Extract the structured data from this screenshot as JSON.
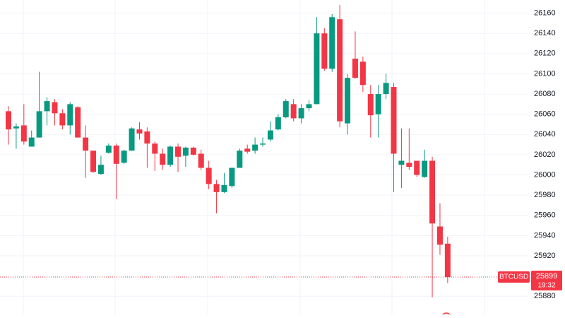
{
  "chart_data": {
    "type": "candlestick",
    "open": [
      26063,
      26046,
      26049,
      26028,
      26037,
      26063,
      26072,
      26061,
      26049,
      26067,
      26037,
      26024,
      26001,
      26022,
      26029,
      26012,
      26024,
      26045,
      26043,
      26031,
      26021,
      26010,
      26028,
      26019,
      26027,
      26021,
      26007,
      25991,
      25983,
      25989,
      26007,
      26026,
      26024,
      26030,
      26035,
      26045,
      26057,
      26070,
      26056,
      26066,
      26070,
      26140,
      26105,
      26154,
      26051,
      26115,
      26112,
      26080,
      26060,
      26080,
      26087,
      26010,
      26012,
      26014,
      25998,
      26014,
      25949,
      25932
    ],
    "high": [
      26068,
      26051,
      26070,
      26044,
      26102,
      26077,
      26075,
      26065,
      26072,
      26068,
      26049,
      26024,
      26019,
      26031,
      26031,
      26025,
      26047,
      26052,
      26047,
      26033,
      26026,
      26029,
      26031,
      26028,
      26028,
      26025,
      26014,
      25995,
      26002,
      26007,
      26026,
      26030,
      26037,
      26037,
      26053,
      26060,
      26075,
      26075,
      26070,
      26074,
      26156,
      26145,
      26159,
      26168,
      26100,
      26142,
      26117,
      26089,
      26089,
      26100,
      26091,
      26046,
      26046,
      26014,
      26025,
      26018,
      25972,
      25939
    ],
    "low": [
      26030,
      26026,
      26030,
      26028,
      26037,
      26049,
      26049,
      26045,
      26040,
      26037,
      25997,
      26002,
      26000,
      26021,
      25976,
      26011,
      26024,
      26035,
      26007,
      26004,
      26005,
      26008,
      26003,
      26008,
      26019,
      26005,
      25986,
      25962,
      25982,
      25987,
      26007,
      26021,
      26021,
      26028,
      26033,
      26044,
      26056,
      26053,
      26051,
      26063,
      26070,
      26103,
      26102,
      26047,
      26040,
      26095,
      26082,
      26037,
      26037,
      26075,
      25983,
      25987,
      26005,
      25998,
      25997,
      25879,
      25921,
      25893
    ],
    "close": [
      26045,
      26048,
      26033,
      26037,
      26063,
      26073,
      26061,
      26049,
      26070,
      26037,
      26024,
      26003,
      26010,
      26029,
      26011,
      26024,
      26046,
      26041,
      26031,
      26021,
      26010,
      26028,
      26018,
      26027,
      26020,
      26007,
      25991,
      25983,
      25990,
      26007,
      26024,
      26023,
      26030,
      26031,
      26044,
      26057,
      26073,
      26056,
      26066,
      26070,
      26140,
      26105,
      26156,
      26053,
      26096,
      26096,
      26089,
      26059,
      26080,
      26091,
      26021,
      26014,
      26008,
      26000,
      26014,
      25952,
      25931,
      25899
    ],
    "up_color": "#089981",
    "down_color": "#f23645",
    "ylim": [
      25862,
      26173
    ],
    "yticks": [
      25880,
      25920,
      25940,
      25960,
      25980,
      26000,
      26020,
      26040,
      26060,
      26080,
      26100,
      26120,
      26140,
      26160
    ],
    "grid": true,
    "last_price": {
      "symbol": "BTCUSD",
      "price": 25899,
      "time": "19:32"
    }
  }
}
